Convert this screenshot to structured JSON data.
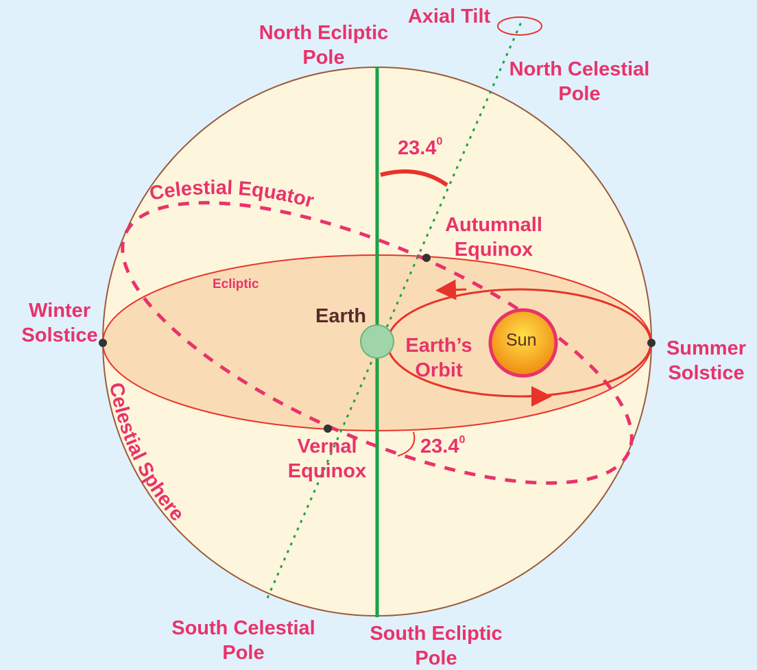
{
  "title_labels": {
    "axial_tilt": [
      "Axial Tilt"
    ],
    "north_ecliptic_pole": [
      "North Ecliptic",
      "Pole"
    ],
    "north_celestial_pole": [
      "North Celestial",
      "Pole"
    ],
    "autumnal_equinox": [
      "Autumnall",
      "Equinox"
    ],
    "winter_solstice": [
      "Winter",
      "Solstice"
    ],
    "summer_solstice": [
      "Summer",
      "Solstice"
    ],
    "vernal_equinox": [
      "Vernal",
      "Equinox"
    ],
    "south_celestial_pole": [
      "South Celestial",
      "Pole"
    ],
    "south_ecliptic_pole": [
      "South Ecliptic",
      "Pole"
    ],
    "earths_orbit": [
      "Earth’s",
      "Orbit"
    ]
  },
  "earth": "Earth",
  "sun": "Sun",
  "ecliptic": "Ecliptic",
  "celestial_equator": "Celestial Equator",
  "celestial_sphere": "Celestial Sphere",
  "angle_top": {
    "text": "23.4",
    "sup": "0"
  },
  "angle_bottom": {
    "text": "23.4",
    "sup": "0"
  }
}
